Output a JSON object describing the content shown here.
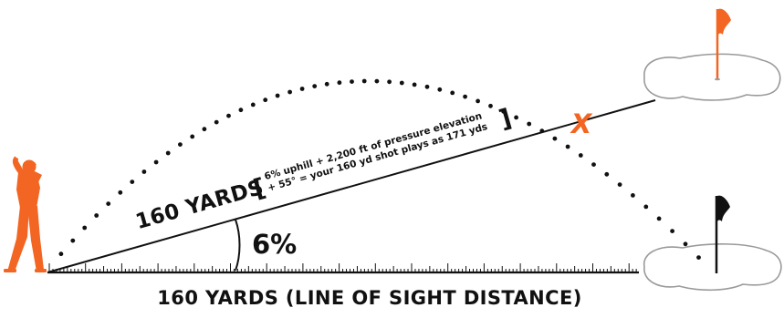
{
  "diagram": {
    "slope_label": "160 YARDS",
    "bracket_open": "[",
    "bracket_close": "]",
    "calc_line_1": "6% uphill + 2,200 ft of pressure elevation",
    "calc_line_2": "+ 55° = your 160 yd shot plays as 171 yds",
    "angle_label": "6%",
    "line_of_sight_label": "160 YARDS (LINE OF SIGHT DISTANCE)",
    "impact_marker": "X",
    "colors": {
      "accent": "#f26522",
      "ink": "#111111",
      "green_outline": "#9a9a9a",
      "background": "#ffffff"
    },
    "icons": {
      "golfer": "golfer-silhouette-icon",
      "upper_flag": "orange-flag-icon",
      "lower_flag": "black-flag-icon",
      "ruler": "distance-ruler"
    }
  }
}
